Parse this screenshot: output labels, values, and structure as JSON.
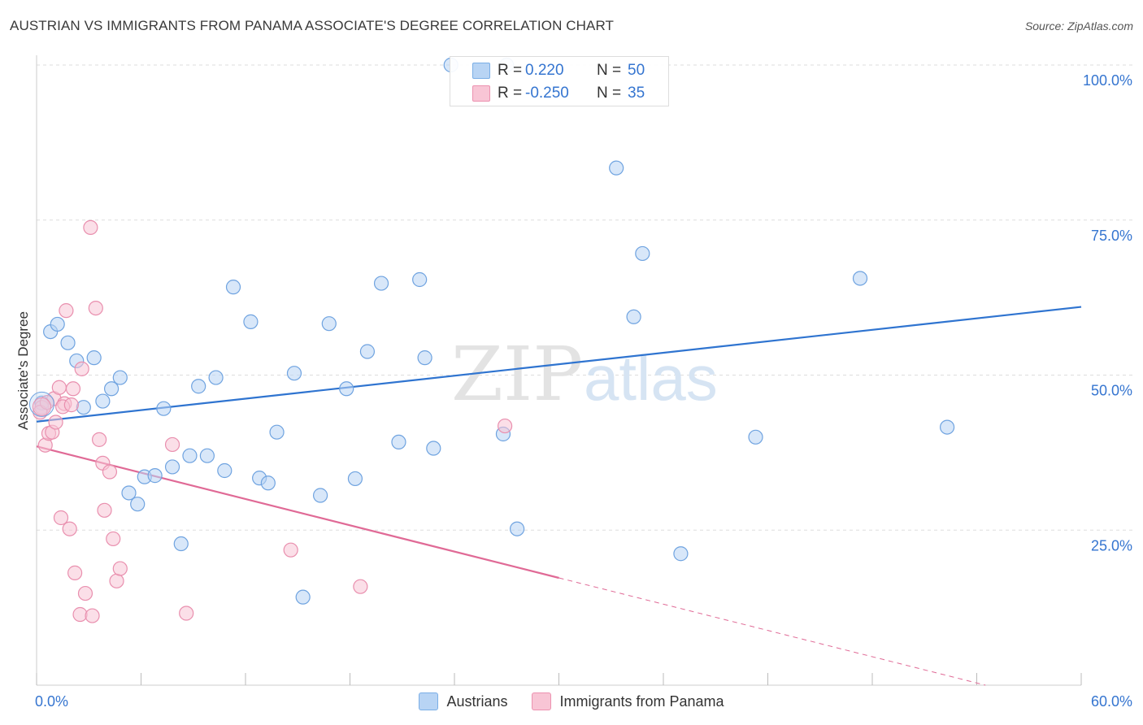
{
  "header": {
    "title": "AUSTRIAN VS IMMIGRANTS FROM PANAMA ASSOCIATE'S DEGREE CORRELATION CHART",
    "source": "Source: ZipAtlas.com"
  },
  "stats_box": {
    "row1": {
      "r_label": "R =",
      "r_value": "0.220",
      "n_label": "N =",
      "n_value": "50",
      "color": "#b8d4f4"
    },
    "row2": {
      "r_label": "R =",
      "r_value": "-0.250",
      "n_label": "N =",
      "n_value": "35",
      "color": "#f8c5d5"
    }
  },
  "legend": {
    "austrians": "Austrians",
    "panama": "Immigrants from Panama"
  },
  "watermark": {
    "zip": "ZIP",
    "atlas": "atlas"
  },
  "colors": {
    "blue_fill": "#b8d4f4",
    "blue_stroke": "#6fa3e0",
    "blue_line": "#2f74d0",
    "pink_fill": "#f8c5d5",
    "pink_stroke": "#e98fae",
    "pink_line": "#e06a96",
    "axis_label": "#3575d0",
    "grid": "#dddddd"
  },
  "chart_data": {
    "type": "scatter",
    "ylabel": "Associate's Degree",
    "xlim": [
      0,
      60
    ],
    "ylim": [
      0,
      100
    ],
    "x_tick_labels": [
      {
        "value": 0,
        "label": "0.0%"
      },
      {
        "value": 60,
        "label": "60.0%"
      }
    ],
    "y_tick_labels": [
      {
        "value": 25,
        "label": "25.0%"
      },
      {
        "value": 50,
        "label": "50.0%"
      },
      {
        "value": 75,
        "label": "75.0%"
      },
      {
        "value": 100,
        "label": "100.0%"
      }
    ],
    "x_minor_ticks": [
      6,
      12,
      18,
      24,
      30,
      36,
      42,
      48,
      54
    ],
    "grid": true,
    "series": [
      {
        "name": "Austrians",
        "color": "#b8d4f4",
        "stroke": "#6fa3e0",
        "points": [
          [
            0.3,
            45.5
          ],
          [
            0.8,
            57.0
          ],
          [
            1.2,
            58.2
          ],
          [
            1.8,
            55.2
          ],
          [
            2.3,
            52.3
          ],
          [
            2.7,
            44.8
          ],
          [
            3.3,
            52.8
          ],
          [
            3.8,
            45.8
          ],
          [
            4.3,
            47.8
          ],
          [
            4.8,
            49.6
          ],
          [
            5.3,
            31.0
          ],
          [
            5.8,
            29.2
          ],
          [
            6.2,
            33.6
          ],
          [
            6.8,
            33.8
          ],
          [
            7.3,
            44.6
          ],
          [
            7.8,
            35.2
          ],
          [
            8.3,
            22.8
          ],
          [
            8.8,
            37.0
          ],
          [
            9.3,
            48.2
          ],
          [
            9.8,
            37.0
          ],
          [
            10.3,
            49.6
          ],
          [
            10.8,
            34.6
          ],
          [
            11.3,
            64.2
          ],
          [
            12.3,
            58.6
          ],
          [
            12.8,
            33.4
          ],
          [
            13.3,
            32.6
          ],
          [
            13.8,
            40.8
          ],
          [
            14.8,
            50.3
          ],
          [
            15.3,
            14.2
          ],
          [
            16.3,
            30.6
          ],
          [
            16.8,
            58.3
          ],
          [
            17.8,
            47.8
          ],
          [
            18.3,
            33.3
          ],
          [
            19.0,
            53.8
          ],
          [
            19.8,
            64.8
          ],
          [
            20.8,
            39.2
          ],
          [
            22.0,
            65.4
          ],
          [
            22.3,
            52.8
          ],
          [
            22.8,
            38.2
          ],
          [
            23.8,
            100.0
          ],
          [
            27.0,
            100.0
          ],
          [
            26.8,
            40.5
          ],
          [
            27.6,
            25.2
          ],
          [
            33.3,
            83.4
          ],
          [
            34.3,
            59.4
          ],
          [
            34.8,
            69.6
          ],
          [
            37.0,
            21.2
          ],
          [
            41.3,
            40.0
          ],
          [
            47.3,
            65.6
          ],
          [
            52.3,
            41.6
          ]
        ]
      },
      {
        "name": "Immigrants from Panama",
        "color": "#f8c5d5",
        "stroke": "#e98fae",
        "points": [
          [
            0.3,
            44.8
          ],
          [
            0.5,
            38.7
          ],
          [
            0.7,
            40.6
          ],
          [
            0.9,
            40.8
          ],
          [
            1.0,
            46.2
          ],
          [
            1.1,
            42.4
          ],
          [
            1.3,
            48.0
          ],
          [
            1.4,
            27.0
          ],
          [
            1.6,
            45.4
          ],
          [
            1.7,
            60.4
          ],
          [
            1.9,
            25.2
          ],
          [
            2.1,
            47.8
          ],
          [
            2.2,
            18.1
          ],
          [
            2.5,
            11.4
          ],
          [
            2.6,
            51.0
          ],
          [
            2.8,
            14.8
          ],
          [
            3.1,
            73.8
          ],
          [
            3.2,
            11.2
          ],
          [
            3.4,
            60.8
          ],
          [
            3.6,
            39.6
          ],
          [
            3.8,
            35.8
          ],
          [
            3.9,
            28.2
          ],
          [
            4.2,
            34.4
          ],
          [
            4.4,
            23.6
          ],
          [
            4.6,
            16.8
          ],
          [
            4.8,
            18.8
          ],
          [
            7.8,
            38.8
          ],
          [
            8.6,
            11.6
          ],
          [
            14.6,
            21.8
          ],
          [
            18.6,
            15.9
          ],
          [
            26.9,
            41.8
          ],
          [
            0.2,
            44.0
          ],
          [
            0.6,
            45.6
          ],
          [
            1.5,
            44.9
          ],
          [
            2.0,
            45.2
          ]
        ]
      }
    ],
    "trend_lines": [
      {
        "series": "Austrians",
        "x": [
          0,
          60
        ],
        "y": [
          42.5,
          61.0
        ],
        "style": "solid"
      },
      {
        "series": "Immigrants from Panama",
        "x": [
          0,
          30
        ],
        "y": [
          38.5,
          17.3
        ],
        "style": "solid"
      },
      {
        "series": "Immigrants from Panama",
        "x": [
          30,
          54.5
        ],
        "y": [
          17.3,
          0.0
        ],
        "style": "dashed"
      }
    ]
  }
}
